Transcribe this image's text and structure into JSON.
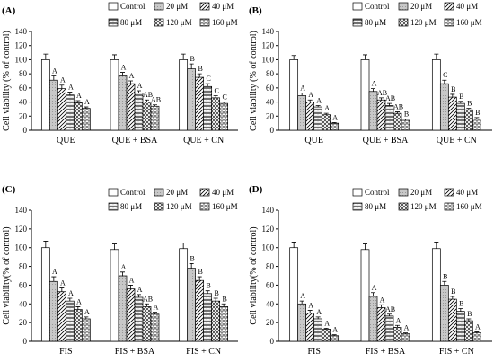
{
  "legend": [
    "Control",
    "20 μM",
    "40 μM",
    "80 μM",
    "120 μM",
    "160 μM"
  ],
  "chart_data": [
    {
      "type": "bar",
      "panel_label": "(A)",
      "ylabel": "Cell viability (% of control)",
      "ylim": [
        0,
        140
      ],
      "yticks": [
        0,
        20,
        40,
        60,
        80,
        100,
        120,
        140
      ],
      "categories": [
        "QUE",
        "QUE + BSA",
        "QUE + CN"
      ],
      "series": [
        {
          "name": "Control",
          "values": [
            100,
            100,
            100
          ],
          "errors": [
            8,
            7,
            8
          ],
          "letters": [
            "",
            "",
            ""
          ]
        },
        {
          "name": "20 μM",
          "values": [
            71,
            77,
            87
          ],
          "errors": [
            6,
            5,
            7
          ],
          "letters": [
            "A",
            "A",
            "B"
          ]
        },
        {
          "name": "40 μM",
          "values": [
            59,
            66,
            75
          ],
          "errors": [
            5,
            4,
            5
          ],
          "letters": [
            "A",
            "A",
            "B"
          ]
        },
        {
          "name": "80 μM",
          "values": [
            50,
            53,
            62
          ],
          "errors": [
            4,
            3,
            4
          ],
          "letters": [
            "A",
            "A",
            "C"
          ]
        },
        {
          "name": "120 μM",
          "values": [
            39,
            40,
            46
          ],
          "errors": [
            3,
            3,
            3
          ],
          "letters": [
            "A",
            "AB",
            "C"
          ]
        },
        {
          "name": "160 μM",
          "values": [
            31,
            34,
            38
          ],
          "errors": [
            2,
            2,
            2
          ],
          "letters": [
            "A",
            "AB",
            "C"
          ]
        }
      ]
    },
    {
      "type": "bar",
      "panel_label": "(B)",
      "ylabel": "Cell viability (% of control)",
      "ylim": [
        0,
        140
      ],
      "yticks": [
        0,
        20,
        40,
        60,
        80,
        100,
        120,
        140
      ],
      "categories": [
        "QUE",
        "QUE + BSA",
        "QUE + CN"
      ],
      "series": [
        {
          "name": "Control",
          "values": [
            100,
            100,
            100
          ],
          "errors": [
            6,
            7,
            8
          ],
          "letters": [
            "",
            "",
            ""
          ]
        },
        {
          "name": "20 μM",
          "values": [
            49,
            55,
            66
          ],
          "errors": [
            4,
            4,
            5
          ],
          "letters": [
            "A",
            "A",
            "C"
          ]
        },
        {
          "name": "40 μM",
          "values": [
            40,
            43,
            47
          ],
          "errors": [
            3,
            3,
            4
          ],
          "letters": [
            "A",
            "AB",
            "B"
          ]
        },
        {
          "name": "80 μM",
          "values": [
            33,
            35,
            38
          ],
          "errors": [
            2,
            3,
            3
          ],
          "letters": [
            "A",
            "AB",
            "B"
          ]
        },
        {
          "name": "120 μM",
          "values": [
            22,
            24,
            29
          ],
          "errors": [
            2,
            2,
            2
          ],
          "letters": [
            "A",
            "AB",
            "B"
          ]
        },
        {
          "name": "160 μM",
          "values": [
            10,
            14,
            16
          ],
          "errors": [
            1,
            2,
            2
          ],
          "letters": [
            "A",
            "B",
            "B"
          ]
        }
      ]
    },
    {
      "type": "bar",
      "panel_label": "(C)",
      "ylabel": "Cell viability(% of control)",
      "ylim": [
        0,
        140
      ],
      "yticks": [
        0,
        20,
        40,
        60,
        80,
        100,
        120,
        140
      ],
      "categories": [
        "FIS",
        "FIS + BSA",
        "FIS + CN"
      ],
      "series": [
        {
          "name": "Control",
          "values": [
            100,
            98,
            99
          ],
          "errors": [
            7,
            6,
            6
          ],
          "letters": [
            "",
            "",
            ""
          ]
        },
        {
          "name": "20 μM",
          "values": [
            64,
            70,
            78
          ],
          "errors": [
            5,
            4,
            5
          ],
          "letters": [
            "A",
            "A",
            "B"
          ]
        },
        {
          "name": "40 μM",
          "values": [
            53,
            56,
            65
          ],
          "errors": [
            4,
            4,
            4
          ],
          "letters": [
            "A",
            "A",
            "B"
          ]
        },
        {
          "name": "80 μM",
          "values": [
            43,
            47,
            51
          ],
          "errors": [
            3,
            3,
            3
          ],
          "letters": [
            "A",
            "A",
            "B"
          ]
        },
        {
          "name": "120 μM",
          "values": [
            34,
            37,
            43
          ],
          "errors": [
            3,
            3,
            3
          ],
          "letters": [
            "A",
            "AB",
            "B"
          ]
        },
        {
          "name": "160 μM",
          "values": [
            24,
            29,
            37
          ],
          "errors": [
            2,
            2,
            3
          ],
          "letters": [
            "A",
            "A",
            "B"
          ]
        }
      ]
    },
    {
      "type": "bar",
      "panel_label": "(D)",
      "ylabel": "Cell viability(% of control)",
      "ylim": [
        0,
        140
      ],
      "yticks": [
        0,
        20,
        40,
        60,
        80,
        100,
        120,
        140
      ],
      "categories": [
        "FIS",
        "FIS + BSA",
        "FIS + CN"
      ],
      "series": [
        {
          "name": "Control",
          "values": [
            100,
            98,
            99
          ],
          "errors": [
            6,
            6,
            7
          ],
          "letters": [
            "",
            "",
            ""
          ]
        },
        {
          "name": "20 μM",
          "values": [
            40,
            48,
            60
          ],
          "errors": [
            3,
            4,
            4
          ],
          "letters": [
            "A",
            "A",
            "B"
          ]
        },
        {
          "name": "40 μM",
          "values": [
            30,
            36,
            45
          ],
          "errors": [
            3,
            3,
            3
          ],
          "letters": [
            "A",
            "A",
            "B"
          ]
        },
        {
          "name": "80 μM",
          "values": [
            24,
            27,
            32
          ],
          "errors": [
            2,
            2,
            3
          ],
          "letters": [
            "A",
            "AB",
            "B"
          ]
        },
        {
          "name": "120 μM",
          "values": [
            13,
            15,
            22
          ],
          "errors": [
            1,
            2,
            2
          ],
          "letters": [
            "A",
            "A",
            "B"
          ]
        },
        {
          "name": "160 μM",
          "values": [
            6,
            8,
            9
          ],
          "errors": [
            1,
            1,
            1
          ],
          "letters": [
            "A",
            "A",
            "A"
          ]
        }
      ]
    }
  ]
}
